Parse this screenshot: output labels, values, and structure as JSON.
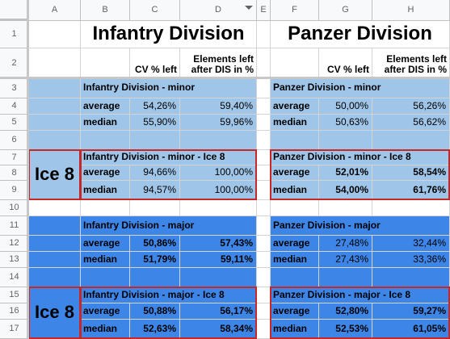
{
  "columns": [
    "A",
    "B",
    "C",
    "D",
    "E",
    "F",
    "G",
    "H"
  ],
  "rows": [
    "1",
    "2",
    "3",
    "4",
    "5",
    "6",
    "7",
    "8",
    "9",
    "10",
    "11",
    "12",
    "13",
    "14",
    "15",
    "16",
    "17"
  ],
  "colors": {
    "light_blue": "#9fc5e8",
    "bright_blue": "#3d85e6",
    "outline_red": "#c62828"
  },
  "titles": {
    "infantry": "Infantry Division",
    "panzer": "Panzer Division"
  },
  "headers": {
    "cv_left": "CV % left",
    "elements_left": "Elements left after DIS in %"
  },
  "labels": {
    "average": "average",
    "median": "median",
    "ice": "Ice 8"
  },
  "infantry_minor": {
    "title": "Infantry Division - minor",
    "average": [
      "54,26%",
      "59,40%"
    ],
    "median": [
      "55,90%",
      "59,96%"
    ]
  },
  "panzer_minor": {
    "title": "Panzer Division - minor",
    "average": [
      "50,00%",
      "56,26%"
    ],
    "median": [
      "50,63%",
      "56,62%"
    ]
  },
  "infantry_minor_ice": {
    "title": "Infantry Division - minor - Ice 8",
    "average": [
      "94,66%",
      "100,00%"
    ],
    "median": [
      "94,57%",
      "100,00%"
    ]
  },
  "panzer_minor_ice": {
    "title": "Panzer Division - minor - Ice 8",
    "average": [
      "52,01%",
      "58,54%"
    ],
    "median": [
      "54,00%",
      "61,76%"
    ]
  },
  "infantry_major": {
    "title": "Infantry Division - major",
    "average": [
      "50,86%",
      "57,43%"
    ],
    "median": [
      "51,79%",
      "59,11%"
    ]
  },
  "panzer_major": {
    "title": "Panzer Division - major",
    "average": [
      "27,48%",
      "32,44%"
    ],
    "median": [
      "27,43%",
      "33,36%"
    ]
  },
  "infantry_major_ice": {
    "title": "Infantry Division - major - Ice 8",
    "average": [
      "50,88%",
      "56,17%"
    ],
    "median": [
      "52,63%",
      "58,34%"
    ]
  },
  "panzer_major_ice": {
    "title": "Panzer Division - major - Ice 8",
    "average": [
      "52,80%",
      "59,27%"
    ],
    "median": [
      "52,53%",
      "61,05%"
    ]
  }
}
